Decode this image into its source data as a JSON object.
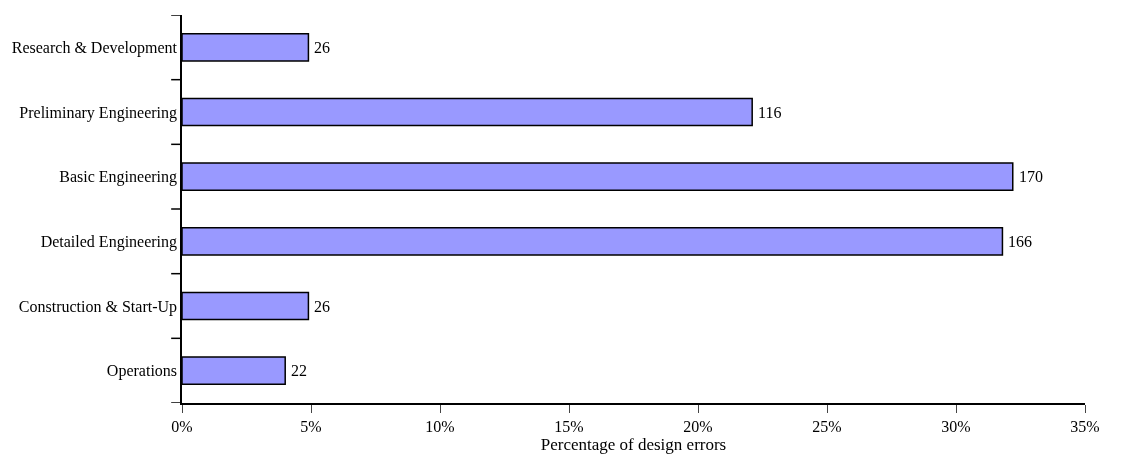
{
  "chart_data": {
    "type": "bar",
    "orientation": "horizontal",
    "xlabel": "Percentage of design errors",
    "categories": [
      "Research & Development",
      "Preliminary Engineering",
      "Basic Engineering",
      "Detailed Engineering",
      "Construction & Start-Up",
      "Operations"
    ],
    "values": [
      4.9,
      22.1,
      32.2,
      31.8,
      4.9,
      4.0
    ],
    "annotations": [
      {
        "text": "26",
        "x": 4.9,
        "y": "Research & Development"
      },
      {
        "text": "116",
        "x": 22.1,
        "y": "Preliminary Engineering"
      },
      {
        "text": "170",
        "x": 32.2,
        "y": "Basic Engineering"
      },
      {
        "text": "166",
        "x": 31.8,
        "y": "Detailed Engineering"
      },
      {
        "text": "26",
        "x": 4.9,
        "y": "Construction & Start-Up"
      },
      {
        "text": "22",
        "x": 4.0,
        "y": "Operations"
      }
    ],
    "color": "#9999ff",
    "xlim": [
      0,
      35
    ],
    "xticks": [
      {
        "value": 0,
        "label": "0%"
      },
      {
        "value": 5,
        "label": "5%"
      },
      {
        "value": 10,
        "label": "10%"
      },
      {
        "value": 15,
        "label": "15%"
      },
      {
        "value": 20,
        "label": "20%"
      },
      {
        "value": 25,
        "label": "25%"
      },
      {
        "value": 30,
        "label": "30%"
      },
      {
        "value": 35,
        "label": "35%"
      }
    ],
    "legend": false
  }
}
